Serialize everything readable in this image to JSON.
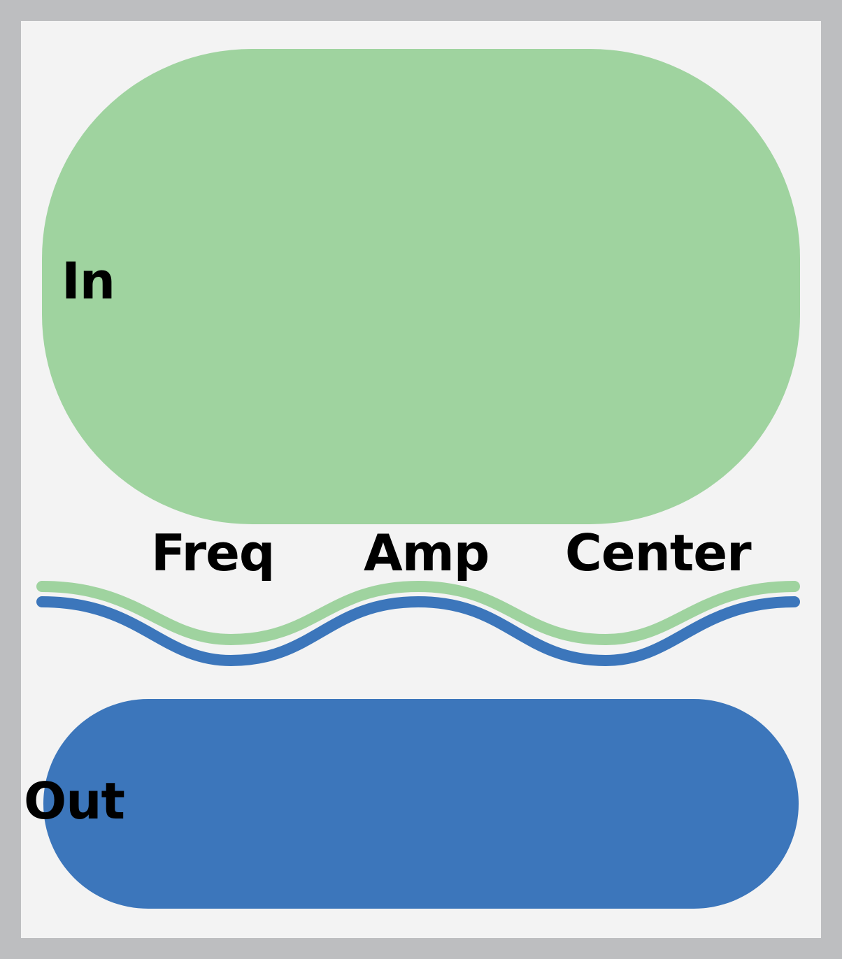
{
  "input": {
    "label": "In"
  },
  "output": {
    "label": "Out"
  },
  "params": [
    {
      "label": "Freq"
    },
    {
      "label": "Amp"
    },
    {
      "label": "Center"
    }
  ],
  "colors": {
    "frame": "#bdbec0",
    "background": "#f3f3f3",
    "input": "#9fd39f",
    "output": "#3c76bb",
    "text": "#000000"
  }
}
